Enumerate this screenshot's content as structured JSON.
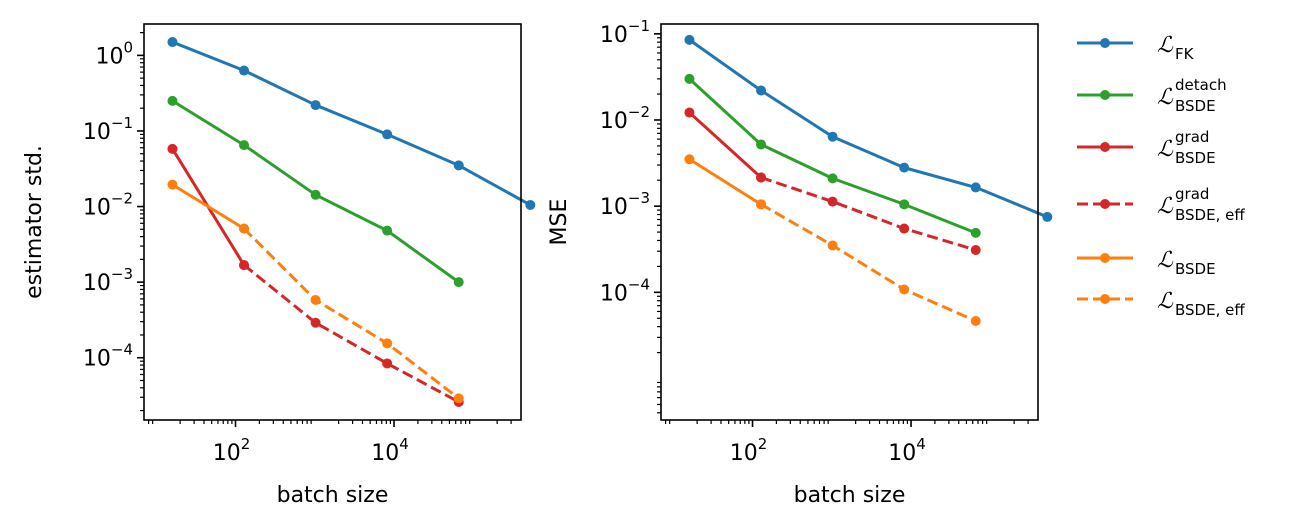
{
  "chart_data": [
    {
      "type": "line",
      "xscale": "log",
      "yscale": "log",
      "xlabel": "batch size",
      "ylabel": "estimator std.",
      "xlim": [
        7,
        400000
      ],
      "ylim": [
        1.5e-05,
        2.6
      ],
      "xticks": [
        {
          "value": 100,
          "base": "10",
          "exp": "2"
        },
        {
          "value": 10000,
          "base": "10",
          "exp": "4"
        }
      ],
      "yticks": [
        {
          "value": 1,
          "base": "10",
          "exp": "0"
        },
        {
          "value": 0.1,
          "base": "10",
          "exp": "−1"
        },
        {
          "value": 0.01,
          "base": "10",
          "exp": "−2"
        },
        {
          "value": 0.001,
          "base": "10",
          "exp": "−3"
        },
        {
          "value": 0.0001,
          "base": "10",
          "exp": "−4"
        }
      ],
      "series": [
        {
          "key": "fk",
          "x": [
            16,
            128,
            1024,
            8192,
            65536,
            524288
          ],
          "y": [
            1.5,
            0.63,
            0.22,
            0.09,
            0.035,
            0.0105
          ]
        },
        {
          "key": "detach",
          "x": [
            16,
            128,
            1024,
            8192,
            65536
          ],
          "y": [
            0.25,
            0.065,
            0.0143,
            0.0048,
            0.001
          ]
        },
        {
          "key": "grad",
          "x": [
            16,
            128
          ],
          "y": [
            0.058,
            0.00168
          ]
        },
        {
          "key": "grad_eff",
          "x": [
            128,
            1024,
            8192,
            65536
          ],
          "y": [
            0.00168,
            0.00029,
            8.4e-05,
            2.6e-05
          ]
        },
        {
          "key": "bsde",
          "x": [
            16,
            128
          ],
          "y": [
            0.0195,
            0.0051
          ]
        },
        {
          "key": "bsde_eff",
          "x": [
            128,
            1024,
            8192,
            65536
          ],
          "y": [
            0.0051,
            0.00058,
            0.000155,
            2.9e-05
          ]
        }
      ]
    },
    {
      "type": "line",
      "xscale": "log",
      "yscale": "log",
      "xlabel": "batch size",
      "ylabel": "MSE",
      "xlim": [
        7,
        400000
      ],
      "ylim": [
        3.3e-06,
        0.13
      ],
      "xticks": [
        {
          "value": 100,
          "base": "10",
          "exp": "2"
        },
        {
          "value": 10000,
          "base": "10",
          "exp": "4"
        }
      ],
      "yticks": [
        {
          "value": 0.1,
          "base": "10",
          "exp": "−1"
        },
        {
          "value": 0.01,
          "base": "10",
          "exp": "−2"
        },
        {
          "value": 0.001,
          "base": "10",
          "exp": "−3"
        },
        {
          "value": 0.0001,
          "base": "10",
          "exp": "−4"
        }
      ],
      "series": [
        {
          "key": "fk",
          "x": [
            16,
            128,
            1024,
            8192,
            65536,
            524288
          ],
          "y": [
            0.085,
            0.022,
            0.0064,
            0.0028,
            0.00165,
            0.00075
          ]
        },
        {
          "key": "detach",
          "x": [
            16,
            128,
            1024,
            8192,
            65536
          ],
          "y": [
            0.03,
            0.0052,
            0.0021,
            0.00105,
            0.00049
          ]
        },
        {
          "key": "grad",
          "x": [
            16,
            128
          ],
          "y": [
            0.0122,
            0.00215
          ]
        },
        {
          "key": "grad_eff",
          "x": [
            128,
            1024,
            8192,
            65536
          ],
          "y": [
            0.00215,
            0.00113,
            0.00055,
            0.00031
          ]
        },
        {
          "key": "bsde",
          "x": [
            16,
            128
          ],
          "y": [
            0.0035,
            0.00105
          ]
        },
        {
          "key": "bsde_eff",
          "x": [
            128,
            1024,
            8192,
            65536
          ],
          "y": [
            0.00105,
            0.00035,
            0.000108,
            4.65e-05
          ]
        }
      ]
    }
  ],
  "legend": {
    "placement": "right",
    "entries": [
      {
        "key": "fk",
        "symbol": "ℒ",
        "sub": "FK",
        "sup": "",
        "color": "#1f77b4",
        "dashed": false
      },
      {
        "key": "detach",
        "symbol": "ℒ",
        "sub": "BSDE",
        "sup": "detach",
        "color": "#2ca02c",
        "dashed": false
      },
      {
        "key": "grad",
        "symbol": "ℒ",
        "sub": "BSDE",
        "sup": "grad",
        "color": "#d62728",
        "dashed": false
      },
      {
        "key": "grad_eff",
        "symbol": "ℒ",
        "sub": "BSDE, eff",
        "sup": "grad",
        "color": "#d62728",
        "dashed": true
      },
      {
        "key": "bsde",
        "symbol": "ℒ",
        "sub": "BSDE",
        "sup": "",
        "color": "#ff7f0e",
        "dashed": false
      },
      {
        "key": "bsde_eff",
        "symbol": "ℒ",
        "sub": "BSDE, eff",
        "sup": "",
        "color": "#ff7f0e",
        "dashed": true
      }
    ]
  }
}
